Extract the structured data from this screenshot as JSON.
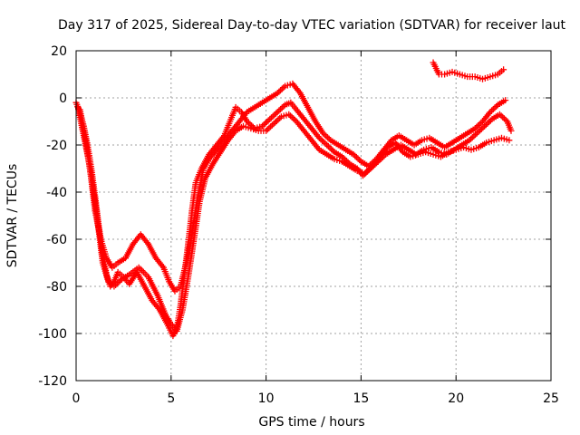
{
  "chart_data": {
    "type": "scatter",
    "title": "Day 317 of 2025, Sidereal Day-to-day VTEC variation (SDTVAR) for receiver laut",
    "xlabel": "GPS time / hours",
    "ylabel": "SDTVAR / TECUs",
    "xlim": [
      0,
      25
    ],
    "ylim": [
      -120,
      20
    ],
    "xticks": [
      "0",
      "5",
      "10",
      "15",
      "20",
      "25"
    ],
    "yticks": [
      "20",
      "0",
      "-20",
      "-40",
      "-60",
      "-80",
      "-100",
      "-120"
    ],
    "grid": true,
    "marker": "plus",
    "color": "#ff0000",
    "series": [
      {
        "points": [
          [
            0.0,
            -2
          ],
          [
            0.2,
            -6
          ],
          [
            0.4,
            -12
          ],
          [
            0.6,
            -20
          ],
          [
            0.8,
            -30
          ],
          [
            1.0,
            -42
          ],
          [
            1.2,
            -55
          ],
          [
            1.4,
            -66
          ],
          [
            1.6,
            -75
          ],
          [
            1.8,
            -80
          ],
          [
            2.0,
            -78
          ],
          [
            2.2,
            -74
          ],
          [
            2.5,
            -76
          ],
          [
            2.8,
            -79
          ],
          [
            3.2,
            -74
          ],
          [
            3.6,
            -80
          ],
          [
            4.0,
            -86
          ],
          [
            4.4,
            -90
          ],
          [
            4.8,
            -96
          ],
          [
            5.1,
            -101
          ],
          [
            5.3,
            -98
          ],
          [
            5.5,
            -88
          ],
          [
            5.7,
            -75
          ],
          [
            5.9,
            -62
          ],
          [
            6.1,
            -48
          ],
          [
            6.3,
            -36
          ],
          [
            6.6,
            -30
          ],
          [
            7.0,
            -24
          ],
          [
            7.4,
            -20
          ],
          [
            7.8,
            -16
          ],
          [
            8.1,
            -10
          ],
          [
            8.4,
            -4
          ],
          [
            8.7,
            -6
          ],
          [
            9.0,
            -10
          ],
          [
            9.4,
            -13
          ],
          [
            9.8,
            -12
          ],
          [
            10.2,
            -9
          ],
          [
            10.6,
            -6
          ],
          [
            11.0,
            -3
          ],
          [
            11.3,
            -2
          ],
          [
            11.6,
            -5
          ],
          [
            12.0,
            -9
          ],
          [
            12.4,
            -13
          ],
          [
            12.8,
            -17
          ],
          [
            13.2,
            -20
          ],
          [
            13.6,
            -23
          ],
          [
            14.0,
            -25
          ],
          [
            14.4,
            -28
          ],
          [
            14.8,
            -30
          ],
          [
            15.1,
            -33
          ],
          [
            15.5,
            -30
          ],
          [
            15.9,
            -27
          ],
          [
            16.3,
            -24
          ],
          [
            16.7,
            -22
          ],
          [
            17.1,
            -20
          ],
          [
            17.5,
            -22
          ],
          [
            17.9,
            -24
          ],
          [
            18.3,
            -22
          ],
          [
            18.7,
            -21
          ],
          [
            19.1,
            -23
          ],
          [
            19.5,
            -24
          ],
          [
            19.9,
            -22
          ],
          [
            20.3,
            -20
          ],
          [
            20.7,
            -18
          ],
          [
            21.1,
            -15
          ],
          [
            21.5,
            -12
          ],
          [
            21.9,
            -9
          ],
          [
            22.3,
            -7
          ],
          [
            22.7,
            -10
          ],
          [
            22.9,
            -14
          ]
        ]
      },
      {
        "points": [
          [
            0.1,
            -4
          ],
          [
            0.4,
            -16
          ],
          [
            0.7,
            -28
          ],
          [
            1.0,
            -48
          ],
          [
            1.3,
            -60
          ],
          [
            1.6,
            -68
          ],
          [
            1.9,
            -72
          ],
          [
            2.2,
            -70
          ],
          [
            2.6,
            -68
          ],
          [
            3.0,
            -62
          ],
          [
            3.4,
            -58
          ],
          [
            3.8,
            -62
          ],
          [
            4.2,
            -68
          ],
          [
            4.6,
            -72
          ],
          [
            4.9,
            -78
          ],
          [
            5.2,
            -82
          ],
          [
            5.5,
            -80
          ],
          [
            5.8,
            -70
          ],
          [
            6.1,
            -58
          ],
          [
            6.4,
            -42
          ],
          [
            6.7,
            -30
          ],
          [
            7.0,
            -26
          ],
          [
            7.4,
            -22
          ],
          [
            7.8,
            -18
          ],
          [
            8.2,
            -14
          ],
          [
            8.6,
            -10
          ],
          [
            9.0,
            -6
          ],
          [
            9.4,
            -4
          ],
          [
            9.8,
            -2
          ],
          [
            10.2,
            0
          ],
          [
            10.6,
            2
          ],
          [
            11.0,
            5
          ],
          [
            11.4,
            6
          ],
          [
            11.8,
            2
          ],
          [
            12.2,
            -4
          ],
          [
            12.6,
            -10
          ],
          [
            13.0,
            -15
          ],
          [
            13.4,
            -18
          ],
          [
            13.8,
            -20
          ],
          [
            14.2,
            -22
          ],
          [
            14.6,
            -24
          ],
          [
            15.0,
            -27
          ],
          [
            15.4,
            -29
          ],
          [
            15.8,
            -26
          ],
          [
            16.2,
            -22
          ],
          [
            16.6,
            -18
          ],
          [
            17.0,
            -16
          ],
          [
            17.4,
            -18
          ],
          [
            17.8,
            -20
          ],
          [
            18.2,
            -18
          ],
          [
            18.6,
            -17
          ],
          [
            19.0,
            -19
          ],
          [
            19.4,
            -21
          ],
          [
            19.8,
            -19
          ],
          [
            20.2,
            -17
          ],
          [
            20.6,
            -15
          ],
          [
            21.0,
            -13
          ],
          [
            21.4,
            -10
          ],
          [
            21.8,
            -6
          ],
          [
            22.2,
            -3
          ],
          [
            22.6,
            -1
          ]
        ]
      },
      {
        "points": [
          [
            0.2,
            -5
          ],
          [
            0.5,
            -18
          ],
          [
            0.8,
            -34
          ],
          [
            1.1,
            -50
          ],
          [
            1.4,
            -70
          ],
          [
            1.7,
            -78
          ],
          [
            2.0,
            -80
          ],
          [
            2.4,
            -77
          ],
          [
            2.8,
            -75
          ],
          [
            3.3,
            -72
          ],
          [
            3.8,
            -76
          ],
          [
            4.3,
            -84
          ],
          [
            4.7,
            -92
          ],
          [
            5.0,
            -96
          ],
          [
            5.3,
            -99
          ],
          [
            5.6,
            -90
          ],
          [
            5.9,
            -76
          ],
          [
            6.2,
            -60
          ],
          [
            6.5,
            -44
          ],
          [
            6.8,
            -34
          ],
          [
            7.2,
            -28
          ],
          [
            7.6,
            -23
          ],
          [
            8.0,
            -18
          ],
          [
            8.4,
            -14
          ],
          [
            8.8,
            -12
          ],
          [
            9.2,
            -13
          ],
          [
            9.6,
            -14
          ],
          [
            10.0,
            -14
          ],
          [
            10.4,
            -11
          ],
          [
            10.8,
            -8
          ],
          [
            11.2,
            -7
          ],
          [
            11.6,
            -10
          ],
          [
            12.0,
            -14
          ],
          [
            12.4,
            -18
          ],
          [
            12.8,
            -22
          ],
          [
            13.2,
            -24
          ],
          [
            13.6,
            -26
          ],
          [
            14.0,
            -27
          ],
          [
            14.4,
            -29
          ],
          [
            14.8,
            -31
          ],
          [
            15.2,
            -32
          ],
          [
            15.6,
            -29
          ],
          [
            16.0,
            -25
          ],
          [
            16.4,
            -21
          ],
          [
            16.8,
            -19
          ],
          [
            17.2,
            -23
          ],
          [
            17.6,
            -25
          ],
          [
            18.0,
            -24
          ],
          [
            18.4,
            -23
          ],
          [
            18.8,
            -24
          ],
          [
            19.2,
            -25
          ],
          [
            19.6,
            -23
          ],
          [
            20.0,
            -22
          ],
          [
            20.4,
            -21
          ],
          [
            20.8,
            -22
          ],
          [
            21.2,
            -21
          ],
          [
            21.6,
            -19
          ],
          [
            22.0,
            -18
          ],
          [
            22.4,
            -17
          ],
          [
            22.8,
            -18
          ]
        ]
      },
      {
        "points": [
          [
            18.8,
            15
          ],
          [
            19.1,
            10
          ],
          [
            19.4,
            10
          ],
          [
            19.8,
            11
          ],
          [
            20.2,
            10
          ],
          [
            20.6,
            9
          ],
          [
            21.0,
            9
          ],
          [
            21.4,
            8
          ],
          [
            21.8,
            9
          ],
          [
            22.2,
            10
          ],
          [
            22.5,
            12
          ]
        ]
      }
    ]
  }
}
